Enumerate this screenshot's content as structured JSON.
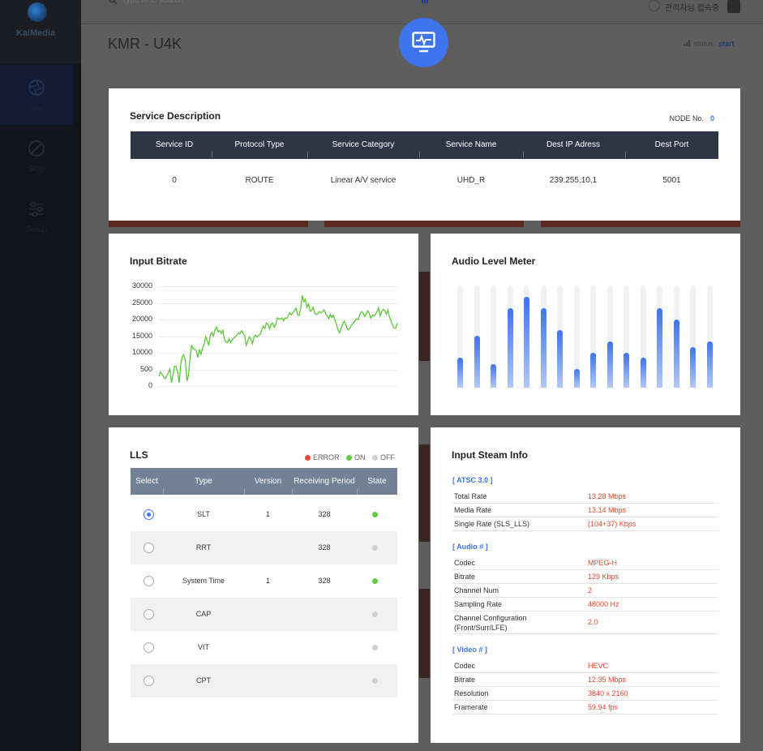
{
  "app": {
    "logo_text": "KaiMedia"
  },
  "sidebar": {
    "items": [
      {
        "label": "Start",
        "icon": "aperture-icon"
      },
      {
        "label": "Stop",
        "icon": "stop-icon"
      },
      {
        "label": "Setup",
        "icon": "sliders-icon"
      }
    ]
  },
  "topbar": {
    "search_placeholder": "Type in to search",
    "user_label": "관리자님 접속중"
  },
  "header": {
    "title": "KMR - U4K",
    "status_label": "status",
    "status_value": "start"
  },
  "service_description": {
    "title": "Service Description",
    "node_label": "NODE No.",
    "node_value": "0",
    "columns": [
      "Service ID",
      "Protocol Type",
      "Service Category",
      "Service Name",
      "Dest IP Adress",
      "Dest Port"
    ],
    "row": [
      "0",
      "ROUTE",
      "Linear A/V service",
      "UHD_R",
      "239.255.10.1",
      "5001"
    ]
  },
  "input_bitrate": {
    "title": "Input Bitrate",
    "y_ticks": [
      "30000",
      "25000",
      "20000",
      "15000",
      "10000",
      "500",
      "0"
    ]
  },
  "chart_data": {
    "type": "line",
    "title": "Input Bitrate",
    "ylim": [
      0,
      30000
    ],
    "y_tick_labels": [
      "0",
      "500",
      "10000",
      "15000",
      "20000",
      "25000",
      "30000"
    ],
    "grid": true,
    "line_color": "#5ac837",
    "series": [
      {
        "values": [
          3000,
          4200,
          3600,
          2800,
          2200,
          3000,
          3900,
          5300,
          1000,
          3200,
          6000,
          5900,
          4100,
          1000,
          6500,
          8800,
          9400,
          7300,
          1500,
          3300,
          8500,
          12400,
          11200,
          11000,
          10600,
          8600,
          10900,
          9600,
          11500,
          12400,
          14900,
          13700,
          12200,
          15400,
          16100,
          15000,
          17000,
          17700,
          16300,
          16700,
          15800,
          16800,
          14200,
          13300,
          13000,
          14200,
          13000,
          14000,
          14400,
          14800,
          15300,
          16000,
          15700,
          16600,
          15900,
          15300,
          12200,
          13400,
          14800,
          14100,
          12700,
          14700,
          15300,
          14700,
          15300,
          15500,
          16900,
          18000,
          17400,
          19000,
          18600,
          17200,
          18600,
          18900,
          17700,
          18400,
          20500,
          20200,
          20200,
          20500,
          19600,
          20500,
          20300,
          21200,
          22000,
          21400,
          22100,
          22800,
          23400,
          21500,
          21200,
          23500,
          27300,
          25400,
          26100,
          23700,
          24700,
          22500,
          22800,
          23700,
          22000,
          21500,
          21700,
          22400,
          22000,
          22400,
          22900,
          21700,
          21100,
          20300,
          21600,
          20600,
          21300,
          19800,
          18500,
          16700,
          16000,
          17400,
          18700,
          19500,
          18300,
          17100,
          17000,
          17700,
          18500,
          19100,
          19700,
          20300,
          20000,
          21600,
          22400,
          22000,
          20900,
          21600,
          22600,
          21800,
          20400,
          21400,
          21000,
          21500,
          22400,
          23500,
          21100,
          22400,
          23100,
          22600,
          21600,
          22900,
          20600,
          19600,
          18200,
          17400,
          17500,
          18900
        ]
      }
    ]
  },
  "audio_level_meter": {
    "title": "Audio Level Meter",
    "levels": [
      0.29,
      0.51,
      0.23,
      0.78,
      0.89,
      0.78,
      0.56,
      0.18,
      0.34,
      0.45,
      0.34,
      0.29,
      0.78,
      0.67,
      0.4,
      0.45
    ]
  },
  "lls": {
    "title": "LLS",
    "legend": [
      {
        "label": "ERROR",
        "color": "#e84a3c"
      },
      {
        "label": "ON",
        "color": "#62c840"
      },
      {
        "label": "OFF",
        "color": "#cfcfcf"
      }
    ],
    "columns": [
      "Select",
      "Type",
      "Version",
      "Receiving Period",
      "State"
    ],
    "rows": [
      {
        "selected": true,
        "type": "SLT",
        "version": "1",
        "period": "328",
        "state": "on"
      },
      {
        "selected": false,
        "type": "RRT",
        "version": "",
        "period": "328",
        "state": "off"
      },
      {
        "selected": false,
        "type": "System Time",
        "version": "1",
        "period": "328",
        "state": "on"
      },
      {
        "selected": false,
        "type": "CAP",
        "version": "",
        "period": "",
        "state": "off"
      },
      {
        "selected": false,
        "type": "VIT",
        "version": "",
        "period": "",
        "state": "off"
      },
      {
        "selected": false,
        "type": "CPT",
        "version": "",
        "period": "",
        "state": "off"
      }
    ]
  },
  "input_stream_info": {
    "title": "Input Steam Info",
    "sections": [
      {
        "title": "[ ATSC 3.0 ]",
        "rows": [
          [
            "Total Rate",
            "13.28  Mbps"
          ],
          [
            "Media Rate",
            "13.14  Mbps"
          ],
          [
            "Single Rate (SLS_LLS)",
            "(104+37)  Kbps"
          ]
        ]
      },
      {
        "title": "[ Audio # ]",
        "rows": [
          [
            "Codec",
            "MPEG-H"
          ],
          [
            "Bitrate",
            "129  Kbps"
          ],
          [
            "Channel Num",
            "2"
          ],
          [
            "Sampling Rate",
            "48000  Hz"
          ],
          [
            "Channel Configuration\n(Front/Surr/LFE)",
            "2.0"
          ]
        ]
      },
      {
        "title": "[ Video # ]",
        "rows": [
          [
            "Codec",
            "HEVC"
          ],
          [
            "Bitrate",
            "12.35  Mbps"
          ],
          [
            "Resolution",
            "3840 x 2160"
          ],
          [
            "Framerate",
            "59.94  fps"
          ]
        ]
      }
    ]
  }
}
